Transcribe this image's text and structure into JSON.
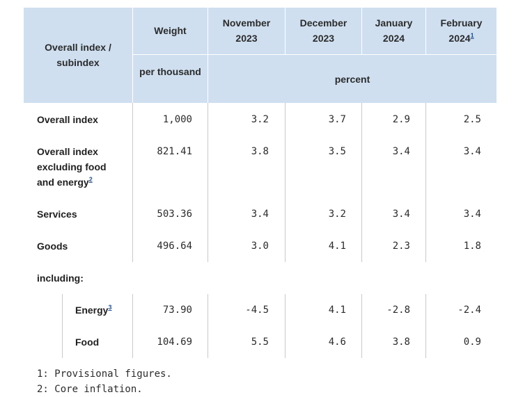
{
  "header": {
    "row_label": "Overall index / subindex",
    "weight": "Weight",
    "weight_unit": "per thousand",
    "periods": [
      {
        "month": "November",
        "year": "2023",
        "note": ""
      },
      {
        "month": "December",
        "year": "2023",
        "note": ""
      },
      {
        "month": "January",
        "year": "2024",
        "note": ""
      },
      {
        "month": "February",
        "year": "2024",
        "note": "1"
      }
    ],
    "percent": "percent"
  },
  "rows": [
    {
      "label": "Overall index",
      "note": "",
      "weight": "1,000",
      "values": [
        "3.2",
        "3.7",
        "2.9",
        "2.5"
      ]
    },
    {
      "label_lines": [
        "Overall index",
        "excluding food",
        "and energy"
      ],
      "note": "2",
      "weight": "821.41",
      "values": [
        "3.8",
        "3.5",
        "3.4",
        "3.4"
      ]
    },
    {
      "label": "Services",
      "note": "",
      "weight": "503.36",
      "values": [
        "3.4",
        "3.2",
        "3.4",
        "3.4"
      ]
    },
    {
      "label": "Goods",
      "note": "",
      "weight": "496.64",
      "values": [
        "3.0",
        "4.1",
        "2.3",
        "1.8"
      ]
    },
    {
      "label": "including:"
    },
    {
      "label": "Energy",
      "note": "3",
      "weight": "73.90",
      "values": [
        "-4.5",
        "4.1",
        "-2.8",
        "-2.4"
      ]
    },
    {
      "label": "Food",
      "note": "",
      "weight": "104.69",
      "values": [
        "5.5",
        "4.6",
        "3.8",
        "0.9"
      ]
    }
  ],
  "footnotes": [
    "1: Provisional figures.",
    "2: Core inflation."
  ],
  "colors": {
    "header_bg": "#cfdff0",
    "link": "#1f4f8f"
  }
}
